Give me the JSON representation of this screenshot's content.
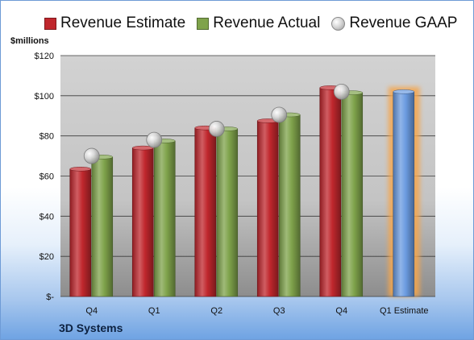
{
  "unit_label": "$millions",
  "company": "3D Systems",
  "legend": [
    {
      "label": "Revenue Estimate",
      "kind": "bar",
      "color": "#c0272d"
    },
    {
      "label": "Revenue Actual",
      "kind": "bar",
      "color": "#7fa34b"
    },
    {
      "label": "Revenue GAAP",
      "kind": "dot",
      "color": "#c9c9c9"
    }
  ],
  "chart_data": {
    "type": "bar",
    "categories": [
      "Q4",
      "Q1",
      "Q2",
      "Q3",
      "Q4",
      "Q1 Estimate"
    ],
    "series": [
      {
        "name": "Revenue Estimate",
        "values": [
          63.5,
          74,
          84,
          87.5,
          104,
          null
        ],
        "color": "#c0272d"
      },
      {
        "name": "Revenue Actual",
        "values": [
          69.5,
          77.5,
          83.5,
          90.5,
          101.5,
          null
        ],
        "color": "#7fa34b"
      },
      {
        "name": "Revenue GAAP",
        "values": [
          70,
          78,
          83.5,
          90.5,
          102,
          null
        ],
        "color": "#c9c9c9",
        "marker": "dot"
      },
      {
        "name": "",
        "values": [
          null,
          null,
          null,
          null,
          null,
          102
        ],
        "color": "#6b9be0",
        "highlight": "#f5a54c"
      }
    ],
    "yticks": [
      "$-",
      "$20",
      "$40",
      "$60",
      "$80",
      "$100",
      "$120"
    ],
    "ylim": [
      0,
      120
    ],
    "grid": true,
    "legend_position": "top"
  }
}
